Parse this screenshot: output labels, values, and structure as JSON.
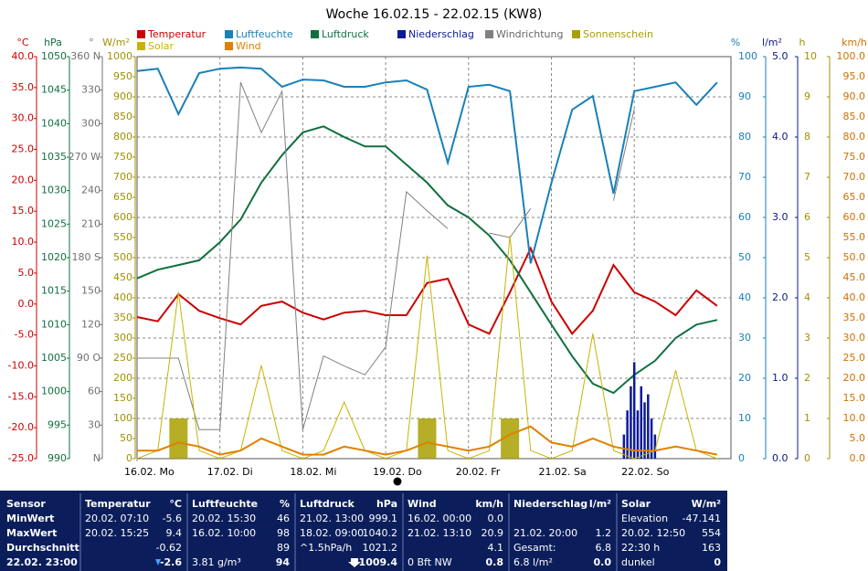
{
  "chart_data": {
    "type": "line",
    "title": "Woche 16.02.15 - 22.02.15 (KW8)",
    "x": [
      0,
      6,
      12,
      18,
      24,
      30,
      36,
      42,
      48,
      54,
      60,
      66,
      72,
      78,
      84,
      90,
      96,
      102,
      108,
      114,
      120,
      126,
      132,
      138,
      144,
      150,
      156,
      162,
      168
    ],
    "xlim": [
      0,
      172
    ],
    "xticks": [
      {
        "value": 0,
        "label": "16.02. Mo"
      },
      {
        "value": 24,
        "label": "17.02. Di"
      },
      {
        "value": 48,
        "label": "18.02. Mi"
      },
      {
        "value": 72,
        "label": "19.02. Do"
      },
      {
        "value": 96,
        "label": "20.02. Fr"
      },
      {
        "value": 120,
        "label": "21.02. Sa"
      },
      {
        "value": 144,
        "label": "22.02. So"
      }
    ],
    "axes": {
      "temp": {
        "unit": "°C",
        "color": "#cc0000",
        "ylim": [
          -25,
          40
        ],
        "yticks": [
          {
            "value": 40,
            "label": "40.0"
          },
          {
            "value": 35,
            "label": "35.0"
          },
          {
            "value": 30,
            "label": "30.0"
          },
          {
            "value": 25,
            "label": "25.0"
          },
          {
            "value": 20,
            "label": "20.0"
          },
          {
            "value": 15,
            "label": "15.0"
          },
          {
            "value": 10,
            "label": "10.0"
          },
          {
            "value": 5,
            "label": "5.0"
          },
          {
            "value": 0,
            "label": "0.0"
          },
          {
            "value": -5,
            "label": "-5.0"
          },
          {
            "value": -10,
            "label": "-10.0"
          },
          {
            "value": -15,
            "label": "-15.0"
          },
          {
            "value": -20,
            "label": "-20.0"
          },
          {
            "value": -25,
            "label": "-25.0"
          }
        ]
      },
      "pres": {
        "unit": "hPa",
        "color": "#107040",
        "ylim": [
          990,
          1050
        ],
        "yticks": [
          1050,
          1045,
          1040,
          1035,
          1030,
          1025,
          1020,
          1015,
          1010,
          1005,
          1000,
          995,
          990
        ]
      },
      "wdir": {
        "unit": "°",
        "color": "#707070",
        "ylim": [
          0,
          360
        ],
        "yticks": [
          {
            "value": 360,
            "label": "360 N"
          },
          330,
          300,
          {
            "value": 270,
            "label": "270 W"
          },
          240,
          210,
          {
            "value": 180,
            "label": "180 S"
          },
          150,
          120,
          {
            "value": 90,
            "label": "90 O"
          },
          60,
          30,
          {
            "value": 0,
            "label": "N"
          }
        ]
      },
      "solar": {
        "unit": "W/m²",
        "color": "#a09000",
        "ylim": [
          0,
          1000
        ],
        "yticks": [
          1000,
          950,
          900,
          850,
          800,
          750,
          700,
          650,
          600,
          550,
          500,
          450,
          400,
          350,
          300,
          250,
          200,
          150,
          100,
          50,
          0
        ]
      },
      "hum": {
        "unit": "%",
        "color": "#1a80b8",
        "ylim": [
          0,
          100
        ],
        "yticks": [
          100,
          90,
          80,
          70,
          60,
          50,
          40,
          30,
          20,
          10,
          0
        ]
      },
      "rain": {
        "unit": "l/m²",
        "color": "#0a1a80",
        "ylim": [
          0,
          5
        ],
        "yticks": [
          {
            "value": 5,
            "label": "5.0"
          },
          {
            "value": 4,
            "label": "4.0"
          },
          {
            "value": 3,
            "label": "3.0"
          },
          {
            "value": 2,
            "label": "2.0"
          },
          {
            "value": 1,
            "label": "1.0"
          },
          {
            "value": 0,
            "label": "0.0"
          }
        ]
      },
      "sun": {
        "unit": "h",
        "color": "#a09000",
        "ylim": [
          0,
          10
        ],
        "yticks": [
          10,
          9,
          8,
          7,
          6,
          5,
          4,
          3,
          2,
          1,
          0
        ]
      },
      "wind": {
        "unit": "km/h",
        "color": "#d07000",
        "ylim": [
          0,
          100
        ],
        "yticks": [
          {
            "value": 100,
            "label": "100.0"
          },
          {
            "value": 95,
            "label": "95.0"
          },
          {
            "value": 90,
            "label": "90.0"
          },
          {
            "value": 85,
            "label": "85.0"
          },
          {
            "value": 80,
            "label": "80.0"
          },
          {
            "value": 75,
            "label": "75.0"
          },
          {
            "value": 70,
            "label": "70.0"
          },
          {
            "value": 65,
            "label": "65.0"
          },
          {
            "value": 60,
            "label": "60.0"
          },
          {
            "value": 55,
            "label": "55.0"
          },
          {
            "value": 50,
            "label": "50.0"
          },
          {
            "value": 45,
            "label": "45.0"
          },
          {
            "value": 40,
            "label": "40.0"
          },
          {
            "value": 35,
            "label": "35.0"
          },
          {
            "value": 30,
            "label": "30.0"
          },
          {
            "value": 25,
            "label": "25.0"
          },
          {
            "value": 20,
            "label": "20.0"
          },
          {
            "value": 15,
            "label": "15.0"
          },
          {
            "value": 10,
            "label": "10.0"
          },
          {
            "value": 5,
            "label": "5.0"
          },
          {
            "value": 0,
            "label": "0.0"
          }
        ]
      }
    },
    "series": [
      {
        "name": "Temperatur",
        "color": "#cc0000",
        "axis": "temp",
        "kind": "line",
        "values": [
          -2.1,
          -2.8,
          1.6,
          -1.1,
          -2.3,
          -3.3,
          -0.3,
          0.4,
          -1.4,
          -2.5,
          -1.4,
          -1.1,
          -1.8,
          -1.8,
          3.4,
          4.1,
          -3.3,
          -4.8,
          1.9,
          9.0,
          0.4,
          -4.8,
          -1.1,
          6.3,
          1.9,
          0.4,
          -1.8,
          2.2,
          -0.3
        ]
      },
      {
        "name": "Luftfeuchte",
        "color": "#1a80b8",
        "axis": "hum",
        "kind": "line",
        "values": [
          96.4,
          97,
          85.7,
          95.9,
          97,
          97.3,
          97,
          92.5,
          94.3,
          94.1,
          92.5,
          92.5,
          93.6,
          94.1,
          91.8,
          73.6,
          92.5,
          93,
          91.4,
          48.6,
          68.6,
          86.8,
          90.2,
          65.9,
          91.4,
          92.5,
          93.6,
          88,
          93.6
        ]
      },
      {
        "name": "Luftdruck",
        "color": "#107040",
        "axis": "pres",
        "kind": "line",
        "values": [
          1016.9,
          1018.2,
          1018.9,
          1019.6,
          1022.3,
          1025.7,
          1031.2,
          1035.3,
          1038.7,
          1039.6,
          1038.0,
          1036.6,
          1036.6,
          1033.9,
          1031.2,
          1027.8,
          1026.0,
          1023.3,
          1019.6,
          1014.8,
          1010.0,
          1005.3,
          1001.2,
          999.8,
          1002.5,
          1004.6,
          1008.0,
          1010.0,
          1010.7
        ]
      },
      {
        "name": "Niederschlag",
        "color": "#0a1a9a",
        "axis": "rain",
        "kind": "bar",
        "x": [
          141,
          142,
          143,
          144,
          145,
          146,
          147,
          148,
          149,
          150
        ],
        "values": [
          0.3,
          0.6,
          0.9,
          1.2,
          0.6,
          0.9,
          0.7,
          0.8,
          0.5,
          0.3
        ]
      },
      {
        "name": "Windrichtung",
        "color": "#808080",
        "axis": "wdir",
        "kind": "line",
        "values": [
          90,
          90,
          90,
          26,
          26,
          337,
          292,
          329,
          26,
          92,
          83,
          75,
          100,
          239,
          222,
          206,
          null,
          202,
          198,
          224,
          null,
          null,
          null,
          231,
          313,
          null,
          null,
          null,
          null
        ]
      },
      {
        "name": "Sonnenschein",
        "color": "#a8a000",
        "axis": "sun",
        "kind": "bar",
        "values": [
          0,
          0,
          1.0,
          0,
          0,
          0,
          0,
          0,
          0,
          0,
          0,
          0,
          0,
          0,
          1.0,
          0,
          0,
          0,
          1.0,
          0,
          0,
          0,
          0,
          0,
          0,
          0,
          0,
          0,
          0
        ]
      },
      {
        "name": "Solar",
        "color": "#c8b400",
        "axis": "solar",
        "kind": "line",
        "values": [
          0,
          20,
          414,
          20,
          0,
          20,
          232,
          20,
          0,
          20,
          141,
          20,
          0,
          20,
          505,
          20,
          0,
          20,
          554,
          20,
          0,
          20,
          311,
          20,
          0,
          20,
          220,
          20,
          0
        ]
      },
      {
        "name": "Wind",
        "color": "#e08000",
        "axis": "wind",
        "kind": "line",
        "values": [
          2,
          2,
          4,
          3,
          1,
          2,
          5,
          3,
          1,
          1,
          3,
          2,
          1,
          2,
          4,
          3,
          2,
          3,
          6,
          8,
          4,
          3,
          5,
          3,
          2,
          2,
          3,
          2,
          1
        ]
      }
    ]
  },
  "table": {
    "columns": [
      {
        "header": "Sensor",
        "rows": [
          {
            "left": "MinWert"
          },
          {
            "left": "MaxWert"
          },
          {
            "left": "Durchschnitt"
          },
          {
            "left": "22.02. 23:00"
          }
        ]
      },
      {
        "header": "Temperatur",
        "unit": "°C",
        "rows": [
          {
            "left": "20.02. 07:10",
            "right": "-5.6"
          },
          {
            "left": "20.02. 15:25",
            "right": "9.4"
          },
          {
            "right": "-0.62"
          },
          {
            "right": "-2.6"
          }
        ]
      },
      {
        "header": "Luftfeuchte",
        "unit": "%",
        "rows": [
          {
            "left": "20.02. 15:30",
            "right": "46"
          },
          {
            "left": "16.02. 10:00",
            "right": "98"
          },
          {
            "right": "89"
          },
          {
            "left": "3.81 g/m³",
            "right": "94"
          }
        ]
      },
      {
        "header": "Luftdruck",
        "unit": "hPa",
        "rows": [
          {
            "left": "21.02. 13:00",
            "right": "999.1"
          },
          {
            "left": "18.02. 09:00",
            "right": "1040.2"
          },
          {
            "left": "^1.5hPa/h",
            "right": "1021.2"
          },
          {
            "right": "1009.4"
          }
        ]
      },
      {
        "header": "Wind",
        "unit": "km/h",
        "rows": [
          {
            "left": "16.02. 00:00",
            "right": "0.0"
          },
          {
            "left": "21.02. 13:10",
            "right": "20.9"
          },
          {
            "right": "4.1"
          },
          {
            "left": "0 Bft NW",
            "right": "0.8"
          }
        ]
      },
      {
        "header": "Niederschlag",
        "unit": "l/m²",
        "rows": [
          {},
          {
            "left": "21.02. 20:00",
            "right": "1.2"
          },
          {
            "left": "Gesamt:",
            "right": "6.8"
          },
          {
            "left": "6.8 l/m²",
            "right": "0.0"
          }
        ]
      },
      {
        "header": "Solar",
        "unit": "W/m²",
        "rows": [
          {
            "left": "Elevation",
            "right": "-47.141"
          },
          {
            "left": "20.02. 12:50",
            "right": "554"
          },
          {
            "left": "22:30 h",
            "right": "163"
          },
          {
            "left": "dunkel",
            "right": "0"
          }
        ]
      }
    ]
  }
}
